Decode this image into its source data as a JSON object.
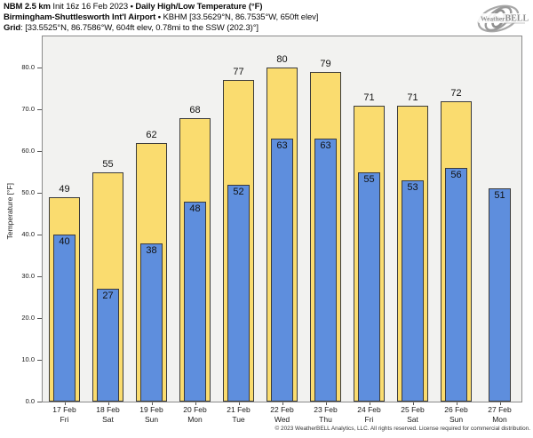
{
  "header": {
    "model": "NBM 2.5 km",
    "init_text": "Init 16z 16 Feb 2023",
    "bullet": "•",
    "product": "Daily High/Low Temperature (°F)",
    "station": "Birmingham-Shuttlesworth Int'l Airport",
    "station_details": "KBHM [33.5629°N, 86.7535°W, 650ft elev]",
    "grid_label": "Grid",
    "grid_details": ": [33.5525°N, 86.7586°W, 604ft elev, 0.78mi to the SSW (202.3)°]"
  },
  "logo": {
    "icon": "hurricane-swirl-icon",
    "brand_prefix": "Weather",
    "brand_suffix": "BELL",
    "color": "#9b9b9b"
  },
  "footer": {
    "copyright": "© 2023 WeatherBELL Analytics, LLC. All rights reserved. License required for commercial distribution."
  },
  "chart_data": {
    "type": "bar",
    "title": "Daily High/Low Temperature (°F)",
    "ylabel": "Temperature [°F]",
    "ylim": [
      0,
      87.5
    ],
    "yticks": [
      0,
      10,
      20,
      30,
      40,
      50,
      60,
      70,
      80
    ],
    "grid": false,
    "legend_position": "none",
    "plot_background": "#f2f2f0",
    "bar_edge_color": "#3b3b3b",
    "categories": [
      {
        "date": "17 Feb",
        "weekday": "Fri"
      },
      {
        "date": "18 Feb",
        "weekday": "Sat"
      },
      {
        "date": "19 Feb",
        "weekday": "Sun"
      },
      {
        "date": "20 Feb",
        "weekday": "Mon"
      },
      {
        "date": "21 Feb",
        "weekday": "Tue"
      },
      {
        "date": "22 Feb",
        "weekday": "Wed"
      },
      {
        "date": "23 Feb",
        "weekday": "Thu"
      },
      {
        "date": "24 Feb",
        "weekday": "Fri"
      },
      {
        "date": "25 Feb",
        "weekday": "Sat"
      },
      {
        "date": "26 Feb",
        "weekday": "Sun"
      },
      {
        "date": "27 Feb",
        "weekday": "Mon"
      }
    ],
    "series": [
      {
        "name": "Daily High",
        "color": "#fadc6f",
        "values": [
          49,
          55,
          62,
          68,
          77,
          80,
          79,
          71,
          71,
          72,
          null
        ]
      },
      {
        "name": "Daily Low",
        "color": "#5e8edd",
        "values": [
          40,
          27,
          38,
          48,
          52,
          63,
          63,
          55,
          53,
          56,
          51
        ]
      }
    ]
  }
}
